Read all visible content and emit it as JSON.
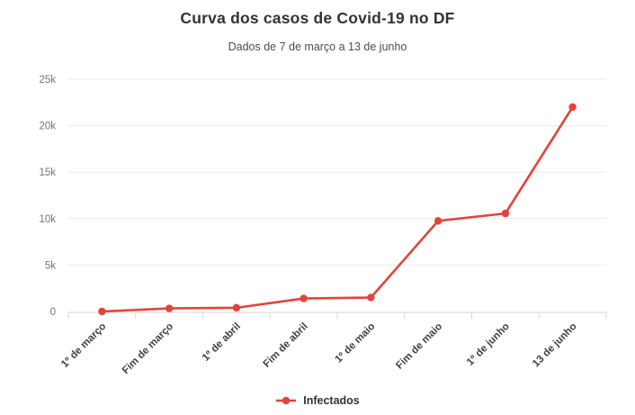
{
  "header": {
    "title": "Curva dos casos de Covid-19 no DF",
    "subtitle": "Dados de 7 de março a 13 de junho"
  },
  "legend": {
    "items": [
      {
        "label": "Infectados",
        "marker_icon": "line-dot-marker",
        "color": "#e2443b"
      }
    ],
    "position": "bottom"
  },
  "colors": {
    "series_red": "#e2443b",
    "gridline": "#ebebeb",
    "axis_line": "#d6d6d6",
    "title_text": "#333333",
    "subtitle_text": "#4d4d4d",
    "y_label_text": "#757575",
    "x_label_text": "#3f3f3f",
    "background": "#ffffff"
  },
  "chart_data": {
    "type": "line",
    "title": "Curva dos casos de Covid-19 no DF",
    "subtitle": "Dados de 7 de março a 13 de junho",
    "categories": [
      "1º de março",
      "Fim de março",
      "1º de abril",
      "Fim de abril",
      "1º de maio",
      "Fim de maio",
      "1º de junho",
      "13 de junho"
    ],
    "series": [
      {
        "name": "Infectados",
        "color": "#e2443b",
        "values": [
          1,
          330,
          400,
          1400,
          1500,
          9750,
          10550,
          22000
        ]
      }
    ],
    "ylabel": "",
    "xlabel": "",
    "ylim": [
      0,
      25000
    ],
    "yticks": {
      "values": [
        0,
        5000,
        10000,
        15000,
        20000,
        25000
      ],
      "labels": [
        "0",
        "5k",
        "10k",
        "15k",
        "20k",
        "25k"
      ]
    },
    "grid": true,
    "x_label_rotation": -45,
    "legend_position": "bottom"
  }
}
